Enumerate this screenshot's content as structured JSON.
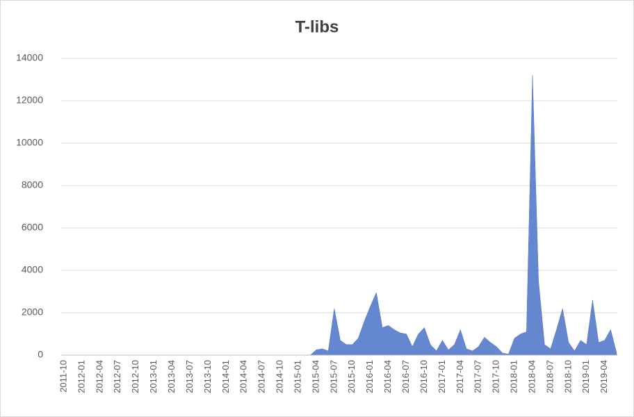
{
  "chart_data": {
    "type": "area",
    "title": "T-libs",
    "categories": [
      "2011-10",
      null,
      null,
      "2012-01",
      null,
      null,
      "2012-04",
      null,
      null,
      "2012-07",
      null,
      null,
      "2012-10",
      null,
      null,
      "2013-01",
      null,
      null,
      "2013-04",
      null,
      null,
      "2013-07",
      null,
      null,
      "2013-10",
      null,
      null,
      "2014-01",
      null,
      null,
      "2014-04",
      null,
      null,
      "2014-07",
      null,
      null,
      "2014-10",
      null,
      null,
      "2015-01",
      null,
      null,
      "2015-04",
      null,
      null,
      "2015-07",
      null,
      null,
      "2015-10",
      null,
      null,
      "2016-01",
      null,
      null,
      "2016-04",
      null,
      null,
      "2016-07",
      null,
      null,
      "2016-10",
      null,
      null,
      "2017-01",
      null,
      null,
      "2017-04",
      null,
      null,
      "2017-07",
      null,
      null,
      "2017-10",
      null,
      null,
      "2018-01",
      null,
      null,
      "2018-04",
      null,
      null,
      "2018-07",
      null,
      null,
      "2018-10",
      null,
      null,
      "2019-01",
      null,
      null,
      "2019-04",
      null,
      null
    ],
    "values": [
      0,
      0,
      0,
      0,
      0,
      0,
      0,
      0,
      0,
      0,
      0,
      0,
      0,
      0,
      0,
      0,
      0,
      0,
      0,
      0,
      0,
      0,
      0,
      0,
      0,
      0,
      0,
      0,
      0,
      0,
      0,
      0,
      0,
      0,
      0,
      0,
      0,
      0,
      0,
      0,
      0,
      0,
      250,
      300,
      200,
      2200,
      700,
      500,
      500,
      800,
      1600,
      2300,
      2950,
      1300,
      1400,
      1200,
      1050,
      1000,
      400,
      1000,
      1300,
      500,
      200,
      700,
      250,
      500,
      1200,
      300,
      200,
      400,
      850,
      600,
      400,
      100,
      50,
      800,
      1000,
      1100,
      13200,
      3500,
      500,
      300,
      1200,
      2200,
      600,
      200,
      700,
      500,
      2600,
      600,
      700,
      1200,
      100
    ],
    "color": "#4a72c8",
    "ylim": [
      0,
      14000
    ],
    "yticks": [
      0,
      2000,
      4000,
      6000,
      8000,
      10000,
      12000,
      14000
    ],
    "grid": true
  }
}
